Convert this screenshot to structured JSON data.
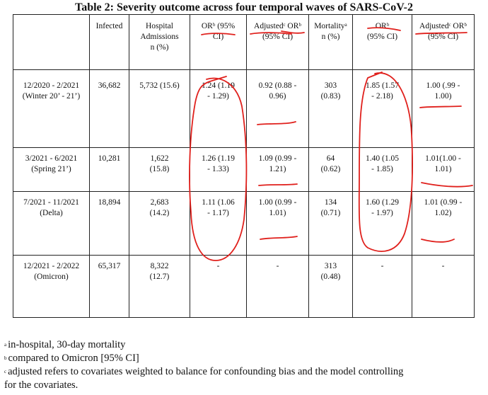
{
  "title": "Table 2: Severity outcome across four temporal waves of SARS-CoV-2",
  "headers": [
    {
      "l1": "",
      "l2": "",
      "l3": ""
    },
    {
      "l1": "Infected",
      "l2": "",
      "l3": ""
    },
    {
      "l1": "Hospital",
      "l2": "Admissions",
      "l3": "n (%)"
    },
    {
      "l1": "ORᵇ (95%",
      "l2": "CI)",
      "l3": ""
    },
    {
      "l1": "Adjustedᶜ ORᵇ",
      "l2": "(95% CI)",
      "l3": ""
    },
    {
      "l1": "Mortalityᵃ",
      "l2": "n (%)",
      "l3": ""
    },
    {
      "l1": "ORᵇ",
      "l2": "(95% CI)",
      "l3": ""
    },
    {
      "l1": "Adjustedᶜ ORᵇ",
      "l2": "(95% CI)",
      "l3": ""
    }
  ],
  "rows": [
    {
      "period": "12/2020 - 2/2021",
      "label": "(Winter 20’ - 21’)",
      "infected": "36,682",
      "hosp1": "5,732 (15.6)",
      "hosp2": "",
      "or1a": "1.24 (1.19",
      "or1b": "- 1.29)",
      "adj1a": "0.92 (0.88 -",
      "adj1b": "0.96)",
      "mort1": "303",
      "mort2": "(0.83)",
      "or2a": "1.85 (1.57",
      "or2b": "- 2.18)",
      "adj2a": "1.00 (.99 -",
      "adj2b": "1.00)"
    },
    {
      "period": "3/2021 - 6/2021",
      "label": "(Spring 21’)",
      "infected": "10,281",
      "hosp1": "1,622",
      "hosp2": "(15.8)",
      "or1a": "1.26 (1.19",
      "or1b": "- 1.33)",
      "adj1a": "1.09 (0.99 -",
      "adj1b": "1.21)",
      "mort1": "64",
      "mort2": "(0.62)",
      "or2a": "1.40 (1.05",
      "or2b": "- 1.85)",
      "adj2a": "1.01(1.00 -",
      "adj2b": "1.01)"
    },
    {
      "period": "7/2021 - 11/2021",
      "label": "(Delta)",
      "infected": "18,894",
      "hosp1": "2,683",
      "hosp2": "(14.2)",
      "or1a": "1.11 (1.06",
      "or1b": "- 1.17)",
      "adj1a": "1.00 (0.99 -",
      "adj1b": "1.01)",
      "mort1": "134",
      "mort2": "(0.71)",
      "or2a": "1.60 (1.29",
      "or2b": "- 1.97)",
      "adj2a": "1.01 (0.99 -",
      "adj2b": "1.02)"
    },
    {
      "period": "12/2021 - 2/2022",
      "label": "(Omicron)",
      "infected": "65,317",
      "hosp1": "8,322",
      "hosp2": "(12.7)",
      "or1a": "-",
      "or1b": "",
      "adj1a": "-",
      "adj1b": "",
      "mort1": "313",
      "mort2": "(0.48)",
      "or2a": "-",
      "or2b": "",
      "adj2a": "-",
      "adj2b": ""
    }
  ],
  "footnotes": [
    {
      "mark": "a",
      "text": "in-hospital, 30-day mortality"
    },
    {
      "mark": "b",
      "text": "compared to Omicron [95% CI]"
    },
    {
      "mark": "c",
      "text": "adjusted refers to covariates weighted to balance for confounding bias and the model controlling"
    },
    {
      "mark": "",
      "text": "for the covariates."
    }
  ],
  "annotation_color": "#e0201c"
}
